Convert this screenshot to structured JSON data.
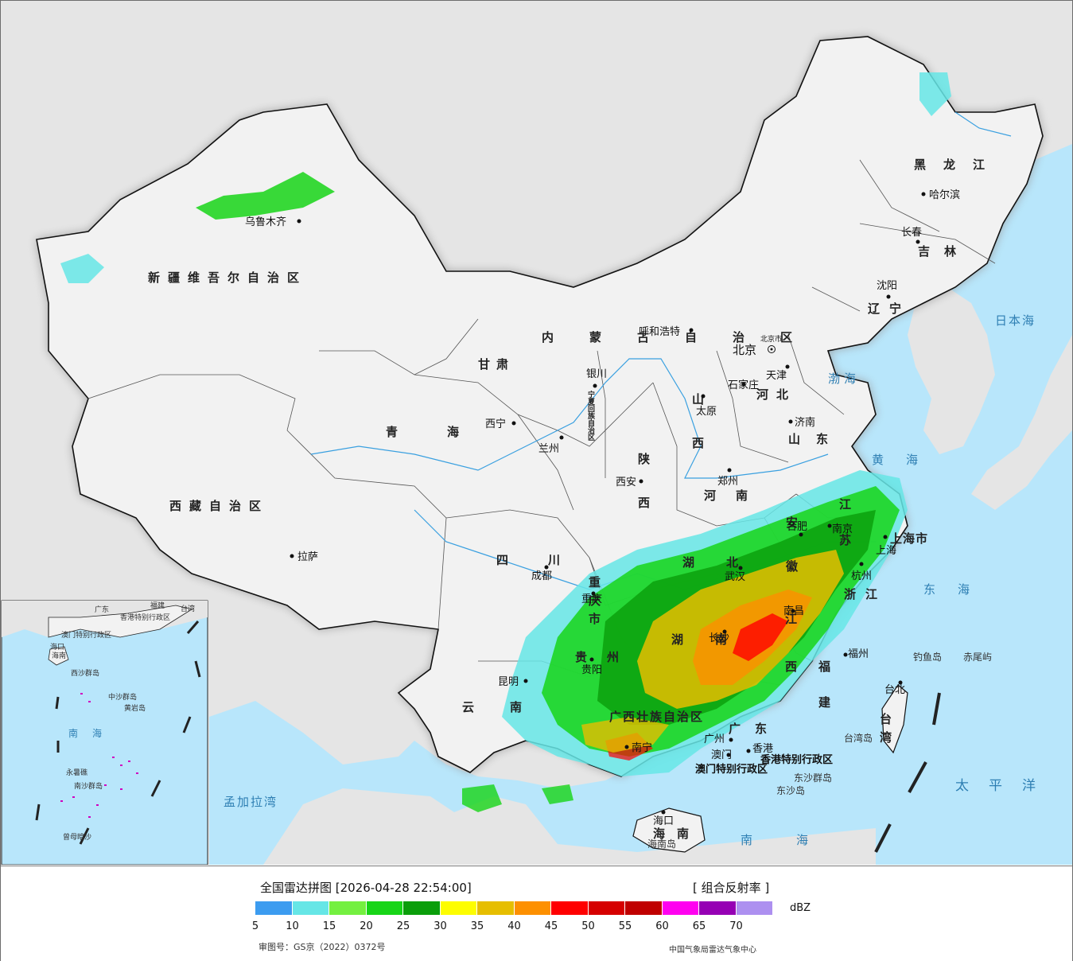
{
  "legend": {
    "title": "全国雷达拼图 [2026-04-28 22:54:00]",
    "product": "[ 组合反射率 ]",
    "unit": "dBZ",
    "ticks": [
      "5",
      "10",
      "15",
      "20",
      "25",
      "30",
      "35",
      "40",
      "45",
      "50",
      "55",
      "60",
      "65",
      "70"
    ],
    "colors": [
      "#3c9cf0",
      "#66e6e6",
      "#74f040",
      "#17d517",
      "#0a9e0a",
      "#fdfd00",
      "#e6be00",
      "#fd9000",
      "#ff0000",
      "#d60000",
      "#c00000",
      "#ff00f0",
      "#9600b4",
      "#ad90f0"
    ],
    "approval": "审图号：GS京（2022）0372号",
    "agency": "中国气象局雷达气象中心"
  },
  "provinces": [
    {
      "name": "新疆维吾尔自治区"
    },
    {
      "name": "西藏自治区"
    },
    {
      "name": "青海"
    },
    {
      "name": "甘肃"
    },
    {
      "name": "内蒙古自治区"
    },
    {
      "name": "黑龙江"
    },
    {
      "name": "吉林"
    },
    {
      "name": "辽宁"
    },
    {
      "name": "河北"
    },
    {
      "name": "山西"
    },
    {
      "name": "陕西"
    },
    {
      "name": "河南"
    },
    {
      "name": "山东"
    },
    {
      "name": "四川"
    },
    {
      "name": "重庆市"
    },
    {
      "name": "湖北"
    },
    {
      "name": "湖南"
    },
    {
      "name": "安徽"
    },
    {
      "name": "江苏"
    },
    {
      "name": "浙江"
    },
    {
      "name": "江西"
    },
    {
      "name": "福建"
    },
    {
      "name": "贵州"
    },
    {
      "name": "云南"
    },
    {
      "name": "广西壮族自治区"
    },
    {
      "name": "广东"
    },
    {
      "name": "海南"
    },
    {
      "name": "台湾"
    },
    {
      "name": "宁夏回族自治区"
    },
    {
      "name": "上海市"
    }
  ],
  "cities": [
    {
      "name": "乌鲁木齐"
    },
    {
      "name": "拉萨"
    },
    {
      "name": "西宁"
    },
    {
      "name": "兰州"
    },
    {
      "name": "银川"
    },
    {
      "name": "呼和浩特"
    },
    {
      "name": "北京市"
    },
    {
      "name": "北京"
    },
    {
      "name": "天津"
    },
    {
      "name": "石家庄"
    },
    {
      "name": "太原"
    },
    {
      "name": "济南"
    },
    {
      "name": "郑州"
    },
    {
      "name": "西安"
    },
    {
      "name": "成都"
    },
    {
      "name": "重庆"
    },
    {
      "name": "贵阳"
    },
    {
      "name": "昆明"
    },
    {
      "name": "南宁"
    },
    {
      "name": "广州"
    },
    {
      "name": "香港"
    },
    {
      "name": "澳门"
    },
    {
      "name": "海口"
    },
    {
      "name": "长沙"
    },
    {
      "name": "武汉"
    },
    {
      "name": "南昌"
    },
    {
      "name": "福州"
    },
    {
      "name": "台北"
    },
    {
      "name": "杭州"
    },
    {
      "name": "上海"
    },
    {
      "name": "南京"
    },
    {
      "name": "合肥"
    },
    {
      "name": "沈阳"
    },
    {
      "name": "长春"
    },
    {
      "name": "哈尔滨"
    }
  ],
  "seas": [
    {
      "name": "日本海"
    },
    {
      "name": "渤海"
    },
    {
      "name": "黄海"
    },
    {
      "name": "东海"
    },
    {
      "name": "太平洋"
    },
    {
      "name": "南海"
    },
    {
      "name": "孟加拉湾"
    }
  ],
  "special": [
    {
      "name": "香港特别行政区"
    },
    {
      "name": "澳门特别行政区"
    },
    {
      "name": "东沙群岛"
    },
    {
      "name": "东沙岛"
    },
    {
      "name": "台湾岛"
    },
    {
      "name": "海南岛"
    },
    {
      "name": "钓鱼岛"
    },
    {
      "name": "赤尾屿"
    }
  ],
  "inset": {
    "labels": [
      "海南",
      "南海",
      "中沙群岛",
      "黄岩岛",
      "南沙群岛",
      "曾母暗沙",
      "西沙群岛",
      "永暑礁",
      "香港特别行政区",
      "澳门特别行政区",
      "台湾",
      "广东",
      "福建",
      "海口"
    ]
  }
}
